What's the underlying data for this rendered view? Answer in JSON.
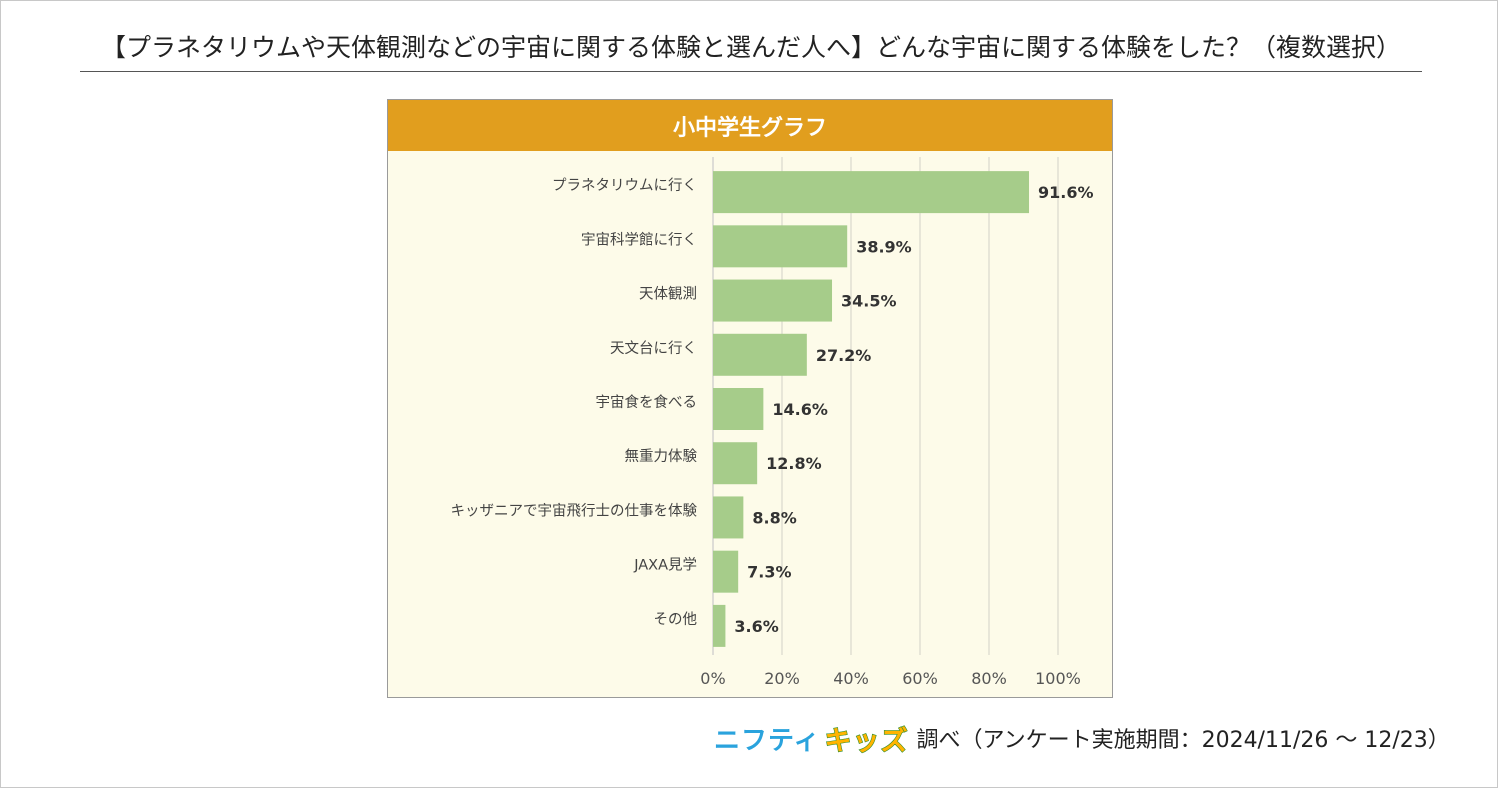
{
  "page_title": "【プラネタリウムや天体観測などの宇宙に関する体験と選んだ人へ】どんな宇宙に関する体験をした？（複数選択）",
  "chart_data": {
    "type": "bar",
    "orientation": "horizontal",
    "title": "小中学生グラフ",
    "categories": [
      "プラネタリウムに行く",
      "宇宙科学館に行く",
      "天体観測",
      "天文台に行く",
      "宇宙食を食べる",
      "無重力体験",
      "キッザニアで宇宙飛行士の仕事を体験",
      "JAXA見学",
      "その他"
    ],
    "values": [
      91.6,
      38.9,
      34.5,
      27.2,
      14.6,
      12.8,
      8.8,
      7.3,
      3.6
    ],
    "value_labels": [
      "91.6%",
      "38.9%",
      "34.5%",
      "27.2%",
      "14.6%",
      "12.8%",
      "8.8%",
      "7.3%",
      "3.6%"
    ],
    "xlim": [
      0,
      100
    ],
    "xticks": [
      "0%",
      "20%",
      "40%",
      "60%",
      "80%",
      "100%"
    ],
    "grid": "vertical",
    "bar_color": "#a6cc8a",
    "header_color": "#e19e1e",
    "panel_bg": "#fdfbe9"
  },
  "footer": {
    "brand_part1": "ニフティ",
    "brand_part2": "キッズ",
    "note": "調べ（アンケート実施期間：2024/11/26 ～ 12/23）"
  }
}
